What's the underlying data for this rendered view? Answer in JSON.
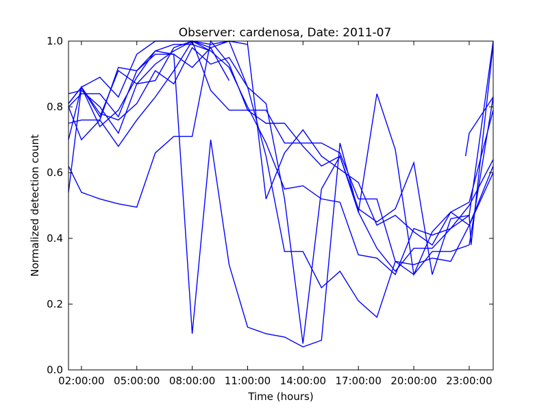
{
  "chart_data": {
    "type": "line",
    "title": "Observer: cardenosa, Date: 2011-07",
    "xlabel": "Time (hours)",
    "ylabel": "Normalized detection count",
    "xlim": [
      1.3,
      24.3
    ],
    "ylim": [
      0.0,
      1.0
    ],
    "x_ticks": [
      {
        "value": 2,
        "label": "02:00:00"
      },
      {
        "value": 5,
        "label": "05:00:00"
      },
      {
        "value": 8,
        "label": "08:00:00"
      },
      {
        "value": 11,
        "label": "11:00:00"
      },
      {
        "value": 14,
        "label": "14:00:00"
      },
      {
        "value": 17,
        "label": "17:00:00"
      },
      {
        "value": 20,
        "label": "20:00:00"
      },
      {
        "value": 23,
        "label": "23:00:00"
      }
    ],
    "y_ticks": [
      {
        "value": 0.0,
        "label": "0.0"
      },
      {
        "value": 0.2,
        "label": "0.2"
      },
      {
        "value": 0.4,
        "label": "0.4"
      },
      {
        "value": 0.6,
        "label": "0.6"
      },
      {
        "value": 0.8,
        "label": "0.8"
      },
      {
        "value": 1.0,
        "label": "1.0"
      }
    ],
    "grid": false,
    "line_color": "#0000ff",
    "series": [
      {
        "points": [
          [
            1.3,
            0.54
          ],
          [
            2,
            0.86
          ],
          [
            3,
            0.77
          ],
          [
            4,
            0.91
          ],
          [
            5,
            0.87
          ],
          [
            6,
            0.93
          ],
          [
            7,
            0.97
          ],
          [
            8,
            1.0
          ],
          [
            9,
            0.97
          ],
          [
            10,
            0.92
          ],
          [
            11,
            0.8
          ],
          [
            12,
            0.69
          ],
          [
            13,
            0.55
          ],
          [
            14,
            0.56
          ],
          [
            15,
            0.52
          ],
          [
            16,
            0.51
          ],
          [
            17,
            0.35
          ],
          [
            18,
            0.34
          ],
          [
            19,
            0.29
          ],
          [
            20,
            0.43
          ],
          [
            21,
            0.41
          ],
          [
            22,
            0.43
          ],
          [
            23,
            0.5
          ],
          [
            24.3,
            0.64
          ]
        ]
      },
      {
        "points": [
          [
            1.3,
            0.62
          ],
          [
            2,
            0.54
          ],
          [
            3,
            0.52
          ],
          [
            4,
            0.505
          ],
          [
            5,
            0.495
          ],
          [
            6,
            0.66
          ],
          [
            7,
            0.71
          ],
          [
            8,
            0.71
          ],
          [
            9,
            1.0
          ],
          [
            10,
            0.93
          ],
          [
            11,
            0.79
          ],
          [
            12,
            0.79
          ],
          [
            13,
            0.69
          ],
          [
            14,
            0.69
          ],
          [
            15,
            0.69
          ],
          [
            16,
            0.66
          ],
          [
            17,
            0.52
          ],
          [
            18,
            0.52
          ],
          [
            19,
            0.33
          ],
          [
            20,
            0.32
          ],
          [
            21,
            0.34
          ],
          [
            22,
            0.33
          ],
          [
            23,
            0.44
          ],
          [
            24.3,
            0.6
          ]
        ]
      },
      {
        "points": [
          [
            1.3,
            0.75
          ],
          [
            2,
            0.76
          ],
          [
            3,
            0.76
          ],
          [
            4,
            0.68
          ],
          [
            5,
            0.76
          ],
          [
            6,
            0.83
          ],
          [
            7,
            0.91
          ],
          [
            8,
            1.0
          ],
          [
            9,
            0.85
          ],
          [
            10,
            0.79
          ],
          [
            11,
            0.79
          ],
          [
            12,
            0.75
          ],
          [
            13,
            0.75
          ],
          [
            14,
            0.68
          ],
          [
            15,
            0.62
          ],
          [
            16,
            0.65
          ],
          [
            17,
            0.49
          ],
          [
            18,
            0.45
          ],
          [
            19,
            0.49
          ],
          [
            20,
            0.63
          ],
          [
            21,
            0.29
          ],
          [
            22,
            0.46
          ],
          [
            23,
            0.47
          ],
          [
            24.3,
            1.0
          ]
        ]
      },
      {
        "points": [
          [
            1.3,
            0.81
          ],
          [
            2,
            0.86
          ],
          [
            3,
            0.89
          ],
          [
            4,
            0.83
          ],
          [
            5,
            0.96
          ],
          [
            6,
            1.0
          ],
          [
            7,
            1.0
          ],
          [
            8,
            1.0
          ],
          [
            9,
            0.98
          ],
          [
            10,
            0.88
          ]
        ]
      },
      {
        "points": [
          [
            1.3,
            0.84
          ],
          [
            2,
            0.85
          ],
          [
            3,
            0.8
          ],
          [
            4,
            0.72
          ],
          [
            5,
            0.87
          ],
          [
            6,
            0.88
          ],
          [
            7,
            0.98
          ],
          [
            8,
            1.0
          ],
          [
            9,
            0.99
          ],
          [
            10,
            1.0
          ],
          [
            11,
            0.99
          ],
          [
            12,
            0.52
          ],
          [
            13,
            0.66
          ],
          [
            14,
            0.73
          ],
          [
            15,
            0.65
          ],
          [
            16,
            0.61
          ],
          [
            17,
            0.57
          ],
          [
            18,
            0.44
          ],
          [
            19,
            0.47
          ],
          [
            20,
            0.42
          ],
          [
            21,
            0.38
          ],
          [
            22,
            0.48
          ],
          [
            23,
            0.51
          ],
          [
            24.3,
            0.79
          ]
        ]
      },
      {
        "points": [
          [
            1.3,
            0.7
          ],
          [
            2,
            0.86
          ],
          [
            3,
            0.78
          ],
          [
            4,
            0.76
          ],
          [
            5,
            0.81
          ],
          [
            6,
            0.91
          ],
          [
            7,
            0.87
          ],
          [
            8,
            0.98
          ],
          [
            9,
            0.93
          ],
          [
            10,
            0.95
          ],
          [
            11,
            0.86
          ],
          [
            12,
            0.65
          ],
          [
            13,
            0.36
          ],
          [
            14,
            0.36
          ],
          [
            15,
            0.25
          ],
          [
            16,
            0.3
          ],
          [
            17,
            0.21
          ],
          [
            18,
            0.16
          ],
          [
            19,
            0.33
          ],
          [
            20,
            0.29
          ],
          [
            21,
            0.36
          ],
          [
            22,
            0.36
          ],
          [
            23,
            0.38
          ],
          [
            24.3,
            0.83
          ]
        ]
      },
      {
        "points": [
          [
            1.3,
            0.8
          ],
          [
            2,
            0.84
          ],
          [
            3,
            0.84
          ],
          [
            4,
            0.77
          ],
          [
            5,
            0.91
          ],
          [
            6,
            0.96
          ],
          [
            7,
            0.96
          ],
          [
            8,
            0.11
          ],
          [
            9,
            0.7
          ],
          [
            10,
            0.32
          ],
          [
            11,
            0.13
          ],
          [
            12,
            0.11
          ],
          [
            13,
            0.1
          ],
          [
            14,
            0.07
          ],
          [
            15,
            0.09
          ],
          [
            16,
            0.69
          ],
          [
            17,
            0.48
          ],
          [
            18,
            0.84
          ],
          [
            19,
            0.67
          ],
          [
            20,
            0.29
          ],
          [
            21,
            0.42
          ],
          [
            22,
            0.48
          ],
          [
            23,
            0.44
          ],
          [
            24.3,
            0.62
          ]
        ]
      },
      {
        "points": [
          [
            1.3,
            0.81
          ],
          [
            2,
            0.86
          ],
          [
            3,
            0.74
          ],
          [
            4,
            0.79
          ],
          [
            5,
            0.89
          ],
          [
            6,
            0.97
          ],
          [
            7,
            0.96
          ],
          [
            8,
            0.92
          ],
          [
            9,
            0.98
          ],
          [
            10,
            1.0
          ],
          [
            11,
            0.86
          ],
          [
            12,
            0.81
          ],
          [
            13,
            0.52
          ],
          [
            14,
            0.08
          ],
          [
            15,
            0.55
          ],
          [
            16,
            0.65
          ],
          [
            17,
            0.48
          ],
          [
            18,
            0.37
          ],
          [
            19,
            0.3
          ],
          [
            20,
            0.37
          ],
          [
            21,
            0.37
          ],
          [
            22,
            0.43
          ],
          [
            23,
            0.47
          ],
          [
            23.1,
            0.38
          ],
          [
            24.3,
            0.99
          ]
        ]
      },
      {
        "points": [
          [
            1.3,
            0.8
          ],
          [
            2,
            0.7
          ],
          [
            3,
            0.76
          ],
          [
            4,
            0.92
          ],
          [
            5,
            0.91
          ],
          [
            6,
            0.97
          ],
          [
            7,
            0.99
          ],
          [
            8,
            0.99
          ],
          [
            9,
            0.97
          ]
        ]
      },
      {
        "points": [
          [
            22.8,
            0.65
          ],
          [
            23,
            0.72
          ],
          [
            24.3,
            0.83
          ]
        ]
      }
    ]
  }
}
